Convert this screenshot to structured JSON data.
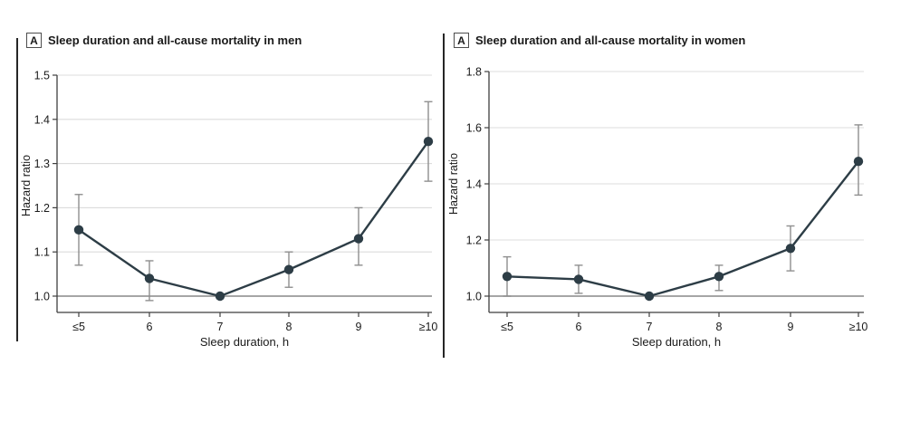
{
  "figure": {
    "colors": {
      "line": "#2d3d46",
      "marker": "#2d3d46",
      "error_bar": "#8f8f8f",
      "gridline": "#dcdcdc",
      "reference_line": "#999999",
      "axis": "#3f3f3f",
      "text": "#1a1a1a"
    }
  },
  "chart_data": [
    {
      "type": "line",
      "panel_key": "A",
      "title": "Sleep duration and all-cause mortality in men",
      "xlabel": "Sleep duration, h",
      "ylabel": "Hazard ratio",
      "categories": [
        "≤5",
        "6",
        "7",
        "8",
        "9",
        "≥10"
      ],
      "series": [
        {
          "name": "Hazard ratio, men",
          "values": [
            1.15,
            1.04,
            1.0,
            1.06,
            1.13,
            1.35
          ],
          "ci_low": [
            1.07,
            0.99,
            null,
            1.02,
            1.07,
            1.26
          ],
          "ci_high": [
            1.23,
            1.08,
            null,
            1.1,
            1.2,
            1.44
          ]
        }
      ],
      "ylim": [
        1.0,
        1.5
      ],
      "yticks": [
        1.0,
        1.1,
        1.2,
        1.3,
        1.4,
        1.5
      ],
      "reference_line": 1.0,
      "grid": "horizontal",
      "legend": "none"
    },
    {
      "type": "line",
      "panel_key": "A",
      "title": "Sleep duration and all-cause mortality in women",
      "xlabel": "Sleep duration, h",
      "ylabel": "Hazard ratio",
      "categories": [
        "≤5",
        "6",
        "7",
        "8",
        "9",
        "≥10"
      ],
      "series": [
        {
          "name": "Hazard ratio, women",
          "values": [
            1.07,
            1.06,
            1.0,
            1.07,
            1.17,
            1.48
          ],
          "ci_low": [
            1.0,
            1.01,
            null,
            1.02,
            1.09,
            1.36
          ],
          "ci_high": [
            1.14,
            1.11,
            null,
            1.11,
            1.25,
            1.61
          ]
        }
      ],
      "ylim": [
        1.0,
        1.8
      ],
      "yticks": [
        1.0,
        1.2,
        1.4,
        1.6,
        1.8
      ],
      "reference_line": 1.0,
      "grid": "horizontal",
      "legend": "none"
    }
  ]
}
